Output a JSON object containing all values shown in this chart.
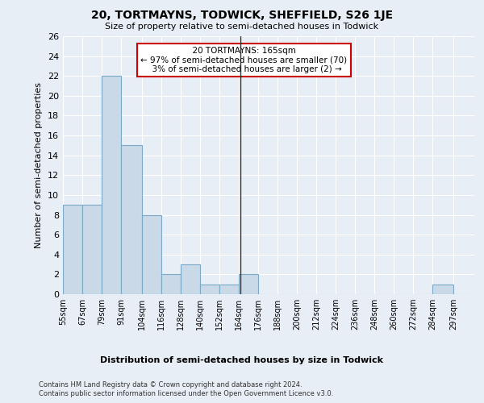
{
  "title": "20, TORTMAYNS, TODWICK, SHEFFIELD, S26 1JE",
  "subtitle": "Size of property relative to semi-detached houses in Todwick",
  "xlabel_bottom": "Distribution of semi-detached houses by size in Todwick",
  "ylabel": "Number of semi-detached properties",
  "footer_line1": "Contains HM Land Registry data © Crown copyright and database right 2024.",
  "footer_line2": "Contains public sector information licensed under the Open Government Licence v3.0.",
  "annotation_title": "20 TORTMAYNS: 165sqm",
  "annotation_line1": "← 97% of semi-detached houses are smaller (70)",
  "annotation_line2": "3% of semi-detached houses are larger (2) →",
  "property_size": 165,
  "bar_color": "#c9d9e8",
  "bar_edge_color": "#7aaac8",
  "vline_color": "#333333",
  "annotation_box_color": "#cc0000",
  "categories": [
    "55sqm",
    "67sqm",
    "79sqm",
    "91sqm",
    "104sqm",
    "116sqm",
    "128sqm",
    "140sqm",
    "152sqm",
    "164sqm",
    "176sqm",
    "188sqm",
    "200sqm",
    "212sqm",
    "224sqm",
    "236sqm",
    "248sqm",
    "260sqm",
    "272sqm",
    "284sqm",
    "297sqm"
  ],
  "values": [
    9,
    9,
    22,
    15,
    8,
    2,
    3,
    1,
    1,
    2,
    0,
    0,
    0,
    0,
    0,
    0,
    0,
    0,
    0,
    1,
    0
  ],
  "bin_edges": [
    55,
    67,
    79,
    91,
    104,
    116,
    128,
    140,
    152,
    164,
    176,
    188,
    200,
    212,
    224,
    236,
    248,
    260,
    272,
    284,
    297
  ],
  "ylim": [
    0,
    26
  ],
  "yticks": [
    0,
    2,
    4,
    6,
    8,
    10,
    12,
    14,
    16,
    18,
    20,
    22,
    24,
    26
  ],
  "bg_color": "#e8eef5",
  "plot_bg_color": "#e8eef5",
  "grid_color": "#ffffff",
  "title_fontsize": 10,
  "subtitle_fontsize": 8,
  "ylabel_fontsize": 8,
  "xtick_fontsize": 7,
  "ytick_fontsize": 8,
  "annotation_fontsize": 7.5,
  "footer_fontsize": 6,
  "xlabel_bottom_fontsize": 8
}
